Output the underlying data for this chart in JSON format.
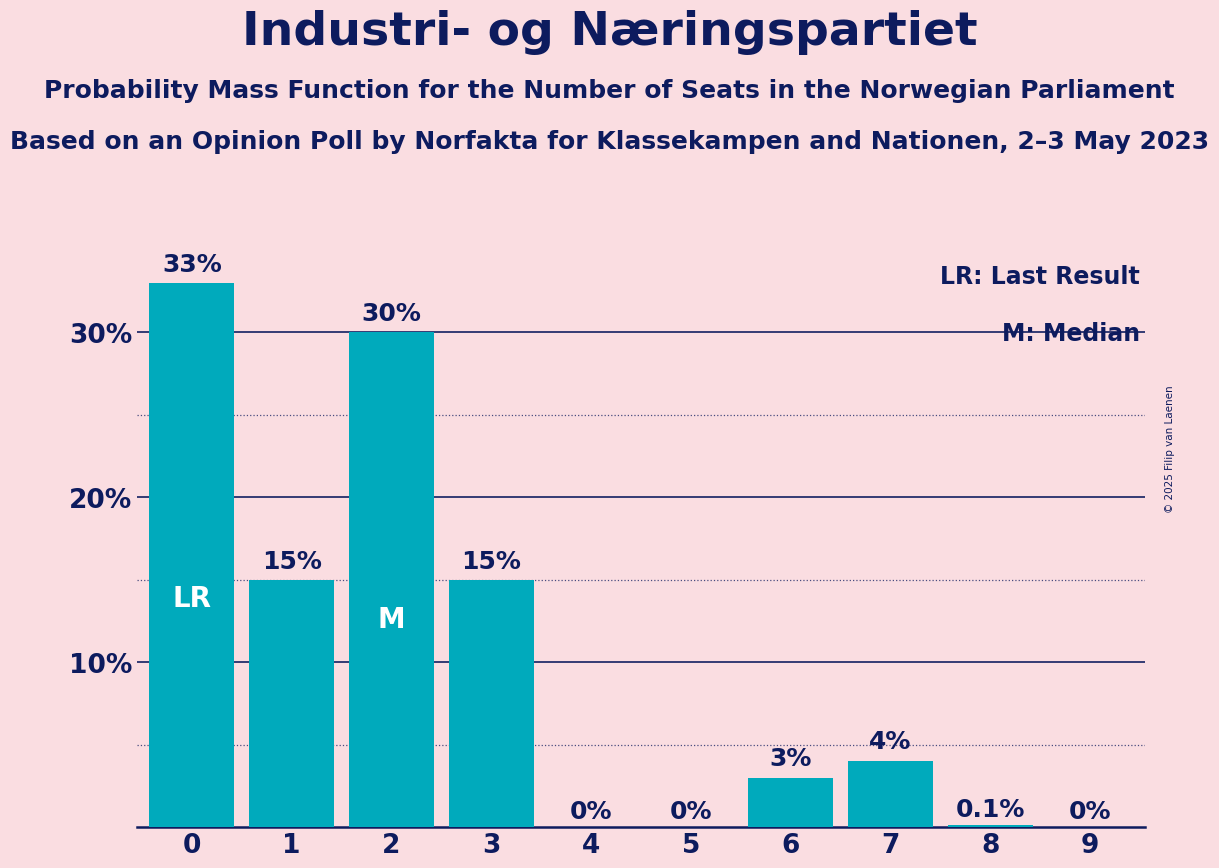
{
  "title": "Industri- og Næringspartiet",
  "subtitle1": "Probability Mass Function for the Number of Seats in the Norwegian Parliament",
  "subtitle2": "Based on an Opinion Poll by Norfakta for Klassekampen and Nationen, 2–3 May 2023",
  "copyright": "© 2025 Filip van Laenen",
  "categories": [
    0,
    1,
    2,
    3,
    4,
    5,
    6,
    7,
    8,
    9
  ],
  "values": [
    33,
    15,
    30,
    15,
    0,
    0,
    3,
    4,
    0.1,
    0
  ],
  "bar_color": "#00AABC",
  "bar_labels": [
    "33%",
    "15%",
    "30%",
    "15%",
    "0%",
    "0%",
    "3%",
    "4%",
    "0.1%",
    "0%"
  ],
  "background_color": "#FADDE1",
  "text_color": "#0D1B5E",
  "bar_text_color_inside": "#FFFFFF",
  "bar_text_color_outside": "#0D1B5E",
  "ylim": [
    0,
    35
  ],
  "major_gridlines": [
    10,
    20,
    30
  ],
  "minor_gridlines": [
    5,
    15,
    25
  ],
  "grid_major_color": "#0D1B5E",
  "grid_minor_color": "#0D1B5E",
  "grid_major_linestyle": "-",
  "grid_minor_linestyle": ":",
  "legend_lr": "LR: Last Result",
  "legend_m": "M: Median",
  "lr_bar": 0,
  "median_bar": 2,
  "lr_label": "LR",
  "median_label": "M",
  "title_fontsize": 34,
  "subtitle_fontsize": 18,
  "subtitle2_fontsize": 18,
  "axis_tick_fontsize": 19,
  "bar_label_fontsize": 18,
  "legend_fontsize": 17,
  "copyright_fontsize": 7.5
}
